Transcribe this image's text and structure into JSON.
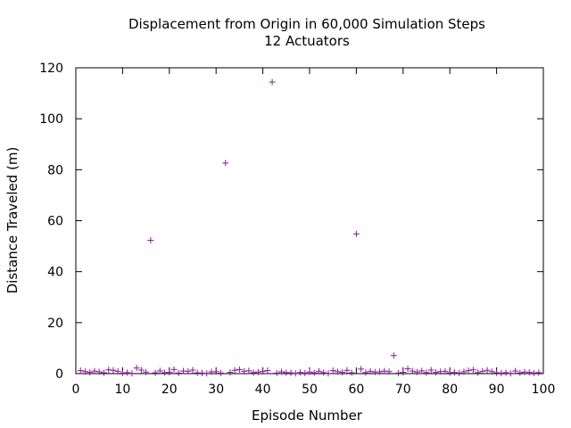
{
  "chart_data": {
    "type": "scatter",
    "title": "Displacement from Origin in 60,000 Simulation Steps",
    "subtitle": "12 Actuators",
    "xlabel": "Episode Number",
    "ylabel": "Distance Traveled (m)",
    "xlim": [
      0,
      100
    ],
    "ylim": [
      0,
      120
    ],
    "xticks": [
      0,
      10,
      20,
      30,
      40,
      50,
      60,
      70,
      80,
      90,
      100
    ],
    "yticks": [
      0,
      20,
      40,
      60,
      80,
      100,
      120
    ],
    "grid": false,
    "legend": "none",
    "marker": "plus",
    "color": "#8b1a9b",
    "points": [
      [
        1,
        1.2
      ],
      [
        2,
        0.8
      ],
      [
        3,
        0.5
      ],
      [
        4,
        1.0
      ],
      [
        5,
        0.7
      ],
      [
        6,
        0.3
      ],
      [
        7,
        1.5
      ],
      [
        8,
        1.3
      ],
      [
        9,
        0.9
      ],
      [
        10,
        0.2
      ],
      [
        11,
        0.4
      ],
      [
        12,
        0.1
      ],
      [
        13,
        2.2
      ],
      [
        14,
        1.4
      ],
      [
        15,
        0.6
      ],
      [
        16,
        52.3
      ],
      [
        17,
        0.3
      ],
      [
        18,
        1.1
      ],
      [
        19,
        0.4
      ],
      [
        20,
        0.5
      ],
      [
        21,
        1.6
      ],
      [
        22,
        0.2
      ],
      [
        23,
        1.0
      ],
      [
        24,
        0.9
      ],
      [
        25,
        1.4
      ],
      [
        26,
        0.3
      ],
      [
        27,
        0.2
      ],
      [
        28,
        0.1
      ],
      [
        29,
        0.7
      ],
      [
        30,
        0.8
      ],
      [
        31,
        0.2
      ],
      [
        32,
        82.6
      ],
      [
        33,
        0.5
      ],
      [
        34,
        1.3
      ],
      [
        35,
        1.6
      ],
      [
        36,
        0.9
      ],
      [
        37,
        1.1
      ],
      [
        38,
        0.4
      ],
      [
        39,
        0.6
      ],
      [
        40,
        0.9
      ],
      [
        41,
        1.2
      ],
      [
        42,
        114.4
      ],
      [
        43,
        0.2
      ],
      [
        44,
        0.7
      ],
      [
        45,
        0.4
      ],
      [
        46,
        0.3
      ],
      [
        47,
        0.1
      ],
      [
        48,
        0.5
      ],
      [
        49,
        0.2
      ],
      [
        50,
        0.6
      ],
      [
        51,
        0.3
      ],
      [
        52,
        0.9
      ],
      [
        53,
        0.4
      ],
      [
        54,
        0.1
      ],
      [
        55,
        1.2
      ],
      [
        56,
        0.8
      ],
      [
        57,
        0.5
      ],
      [
        58,
        1.3
      ],
      [
        59,
        0.3
      ],
      [
        60,
        54.8
      ],
      [
        61,
        1.8
      ],
      [
        62,
        0.4
      ],
      [
        63,
        0.9
      ],
      [
        64,
        0.6
      ],
      [
        65,
        0.7
      ],
      [
        66,
        1.0
      ],
      [
        67,
        0.8
      ],
      [
        68,
        7.1
      ],
      [
        69,
        0.2
      ],
      [
        70,
        0.5
      ],
      [
        71,
        1.9
      ],
      [
        72,
        1.0
      ],
      [
        73,
        0.6
      ],
      [
        74,
        1.1
      ],
      [
        75,
        0.4
      ],
      [
        76,
        1.4
      ],
      [
        77,
        0.5
      ],
      [
        78,
        0.8
      ],
      [
        79,
        0.9
      ],
      [
        80,
        0.3
      ],
      [
        81,
        0.5
      ],
      [
        82,
        0.2
      ],
      [
        83,
        0.7
      ],
      [
        84,
        1.2
      ],
      [
        85,
        1.5
      ],
      [
        86,
        0.4
      ],
      [
        87,
        0.9
      ],
      [
        88,
        1.3
      ],
      [
        89,
        0.8
      ],
      [
        90,
        0.3
      ],
      [
        91,
        0.2
      ],
      [
        92,
        0.4
      ],
      [
        93,
        0.1
      ],
      [
        94,
        1.0
      ],
      [
        95,
        0.3
      ],
      [
        96,
        0.6
      ],
      [
        97,
        0.5
      ],
      [
        98,
        0.2
      ],
      [
        99,
        0.4
      ]
    ]
  }
}
